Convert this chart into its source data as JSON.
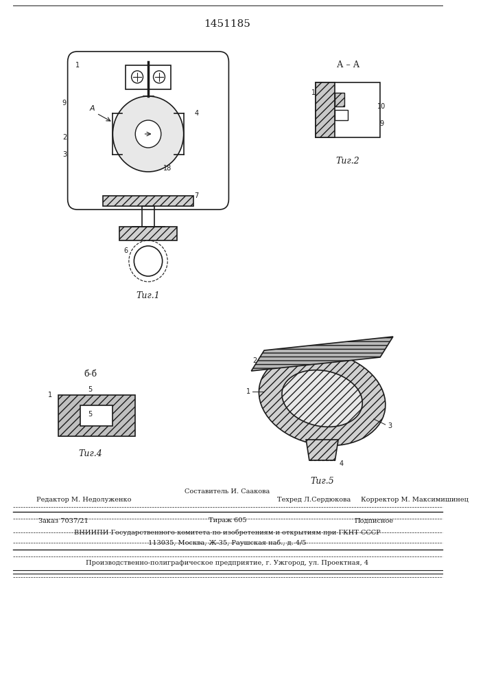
{
  "patent_number": "1451185",
  "background_color": "#ffffff",
  "line_color": "#1a1a1a",
  "hatch_color": "#2a2a2a",
  "fig1_label": "Τиг.1",
  "fig2_label": "Τиг.2",
  "fig4_label": "Τиг.4",
  "fig5_label": "Τиг.5",
  "section_aa": "А – А",
  "section_bb": "б-б",
  "footer_editor": "Редактор М. Недолуженко",
  "footer_composer": "Составитель И. Саакова",
  "footer_techred": "Техред Л.Сердюкова",
  "footer_corrector": "Корректор М. Максимишинец",
  "footer_order": "Заказ 7037/21",
  "footer_tirazh": "Тираж 605",
  "footer_podpisnoe": "Подписное",
  "footer_vniiipi": "ВНИИПИ Государственного комитета по изобретениям и открытиям при ГКНТ СССР",
  "footer_address": "113035, Москва, Ж-35, Раушская наб., д. 4/5",
  "footer_production": "Производственно-полиграфическое предприятие, г. Ужгород, ул. Проектная, 4"
}
